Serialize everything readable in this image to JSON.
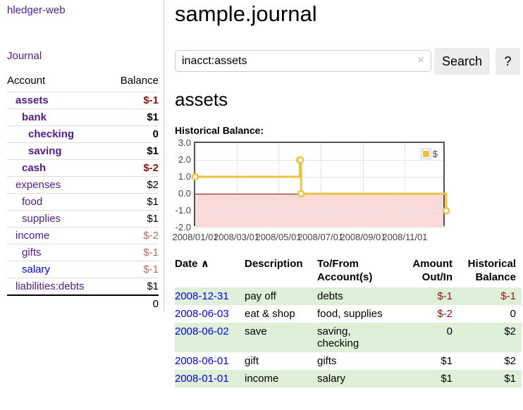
{
  "app": {
    "title": "hledger-web",
    "nav_journal": "Journal"
  },
  "colors": {
    "link_visited_purple": "#551a8b",
    "link_blue": "#0000ee",
    "negative_red": "#8b1414",
    "negative_muted_red": "#b36d6d",
    "row_green": "#dff0d8",
    "series_yellow": "#edc240"
  },
  "sidebar": {
    "header": {
      "account": "Account",
      "balance": "Balance"
    },
    "rows": [
      {
        "name": "assets",
        "balance": "$-1"
      },
      {
        "name": "bank",
        "balance": "$1"
      },
      {
        "name": "checking",
        "balance": "0"
      },
      {
        "name": "saving",
        "balance": "$1"
      },
      {
        "name": "cash",
        "balance": "$-2"
      },
      {
        "name": "expenses",
        "balance": "$2"
      },
      {
        "name": "food",
        "balance": "$1"
      },
      {
        "name": "supplies",
        "balance": "$1"
      },
      {
        "name": "income",
        "balance": "$-2"
      },
      {
        "name": "gifts",
        "balance": "$-1"
      },
      {
        "name": "salary",
        "balance": "$-1"
      },
      {
        "name": "liabilities:debts",
        "balance": "$1"
      }
    ],
    "total": "0"
  },
  "main": {
    "title": "sample.journal",
    "search": {
      "query": "inacct:assets",
      "clear_icon": "×",
      "button": "Search",
      "help": "?"
    },
    "heading": "assets",
    "chart_label": "Historical Balance:"
  },
  "chart_data": {
    "type": "line",
    "title": "Historical Balance",
    "step": true,
    "x_range": [
      "2008-01-01",
      "2008-12-31"
    ],
    "ylim": [
      -2,
      3
    ],
    "y_ticks": [
      "3.0",
      "2.0",
      "1.0",
      "0.0",
      "-1.0",
      "-2.0"
    ],
    "x_ticks": [
      "2008/01/01",
      "2008/03/01",
      "2008/05/01",
      "2008/07/01",
      "2008/09/01",
      "2008/11/01"
    ],
    "series": [
      {
        "name": "$",
        "color": "#edc240",
        "points": [
          [
            "2008-01-01",
            1
          ],
          [
            "2008-06-01",
            2
          ],
          [
            "2008-06-02",
            2
          ],
          [
            "2008-06-03",
            0
          ],
          [
            "2008-12-31",
            -1
          ]
        ]
      }
    ],
    "legend": {
      "label": "$",
      "position": "top-right"
    },
    "grid": true,
    "negative_region_fill": "#fbdada",
    "zero_line_color": "#8f0b0b"
  },
  "register": {
    "headers": {
      "date": "Date",
      "sort_icon": "∧",
      "description": "Description",
      "tofrom_l1": "To/From",
      "tofrom_l2": "Account(s)",
      "amount_l1": "Amount",
      "amount_l2": "Out/In",
      "balance_l1": "Historical",
      "balance_l2": "Balance"
    },
    "rows": [
      {
        "date": "2008-12-31",
        "description": "pay off",
        "accounts": "debts",
        "amount": "$-1",
        "balance": "$-1"
      },
      {
        "date": "2008-06-03",
        "description": "eat & shop",
        "accounts": "food, supplies",
        "amount": "$-2",
        "balance": "0"
      },
      {
        "date": "2008-06-02",
        "description": "save",
        "accounts": "saving,\nchecking",
        "amount": "0",
        "balance": "$2"
      },
      {
        "date": "2008-06-01",
        "description": "gift",
        "accounts": "gifts",
        "amount": "$1",
        "balance": "$2"
      },
      {
        "date": "2008-01-01",
        "description": "income",
        "accounts": "salary",
        "amount": "$1",
        "balance": "$1"
      }
    ]
  }
}
